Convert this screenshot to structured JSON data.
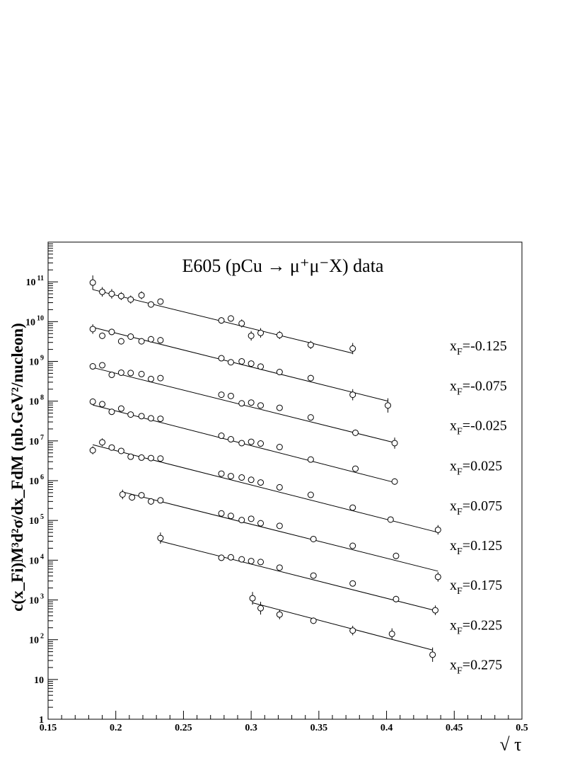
{
  "chart_data": {
    "type": "scatter",
    "title": "E605 (pCu → μ⁺μ⁻X) data",
    "xlabel": "√ τ",
    "ylabel": "c(x_Fi)M³d²σ/dx_FdM (nb.GeV²/nucleon)",
    "xlim": [
      0.15,
      0.5
    ],
    "ylim": [
      1,
      1000000000000.0
    ],
    "yscale": "log",
    "grid": false,
    "legend": "labels at right of each series",
    "x_tick_labels": [
      "0.15",
      "0.2",
      "0.25",
      "0.3",
      "0.35",
      "0.4",
      "0.45",
      "0.5"
    ],
    "y_tick_labels": [
      {
        "base": "1",
        "exp": ""
      },
      {
        "base": "10",
        "exp": ""
      },
      {
        "base": "10",
        "exp": "2"
      },
      {
        "base": "10",
        "exp": "3"
      },
      {
        "base": "10",
        "exp": "4"
      },
      {
        "base": "10",
        "exp": "5"
      },
      {
        "base": "10",
        "exp": "6"
      },
      {
        "base": "10",
        "exp": "7"
      },
      {
        "base": "10",
        "exp": "8"
      },
      {
        "base": "10",
        "exp": "9"
      },
      {
        "base": "10",
        "exp": "10"
      },
      {
        "base": "10",
        "exp": "11"
      }
    ],
    "series": [
      {
        "name": "x_F=-0.125",
        "label_main": "x",
        "label_sub": "F",
        "label_val": "=-0.125",
        "label_y": 2500000000.0,
        "fit": {
          "x": [
            0.183,
            0.375
          ],
          "y": [
            64000000000.0,
            1600000000.0
          ]
        },
        "points": [
          {
            "x": 0.183,
            "y": 96000000000.0,
            "err": 0.18
          },
          {
            "x": 0.19,
            "y": 56000000000.0,
            "err": 0.12
          },
          {
            "x": 0.197,
            "y": 50000000000.0,
            "err": 0.12
          },
          {
            "x": 0.204,
            "y": 44000000000.0,
            "err": 0.1
          },
          {
            "x": 0.211,
            "y": 36000000000.0,
            "err": 0.1
          },
          {
            "x": 0.219,
            "y": 46000000000.0,
            "err": 0.1
          },
          {
            "x": 0.226,
            "y": 27000000000.0,
            "err": 0.08
          },
          {
            "x": 0.233,
            "y": 32000000000.0,
            "err": 0.08
          },
          {
            "x": 0.278,
            "y": 10700000000.0,
            "err": 0.08
          },
          {
            "x": 0.285,
            "y": 12000000000.0,
            "err": 0.08
          },
          {
            "x": 0.293,
            "y": 9000000000.0,
            "err": 0.1
          },
          {
            "x": 0.3,
            "y": 4400000000.0,
            "err": 0.12
          },
          {
            "x": 0.307,
            "y": 5200000000.0,
            "err": 0.12
          },
          {
            "x": 0.321,
            "y": 4600000000.0,
            "err": 0.1
          },
          {
            "x": 0.344,
            "y": 2600000000.0,
            "err": 0.1
          },
          {
            "x": 0.375,
            "y": 2100000000.0,
            "err": 0.14
          }
        ]
      },
      {
        "name": "x_F=-0.075",
        "label_main": "x",
        "label_sub": "F",
        "label_val": "=-0.075",
        "label_y": 250000000.0,
        "fit": {
          "x": [
            0.183,
            0.401
          ],
          "y": [
            7200000000.0,
            100000000.0
          ]
        },
        "points": [
          {
            "x": 0.183,
            "y": 6500000000.0,
            "err": 0.12
          },
          {
            "x": 0.19,
            "y": 4400000000.0,
            "err": 0.08
          },
          {
            "x": 0.197,
            "y": 5500000000.0,
            "err": 0.08
          },
          {
            "x": 0.204,
            "y": 3200000000.0,
            "err": 0.08
          },
          {
            "x": 0.211,
            "y": 4200000000.0,
            "err": 0.08
          },
          {
            "x": 0.219,
            "y": 3200000000.0,
            "err": 0.08
          },
          {
            "x": 0.226,
            "y": 3600000000.0,
            "err": 0.08
          },
          {
            "x": 0.233,
            "y": 3400000000.0,
            "err": 0.08
          },
          {
            "x": 0.278,
            "y": 1200000000.0,
            "err": 0.06
          },
          {
            "x": 0.285,
            "y": 950000000.0,
            "err": 0.06
          },
          {
            "x": 0.293,
            "y": 1000000000.0,
            "err": 0.06
          },
          {
            "x": 0.3,
            "y": 880000000.0,
            "err": 0.06
          },
          {
            "x": 0.307,
            "y": 740000000.0,
            "err": 0.08
          },
          {
            "x": 0.321,
            "y": 540000000.0,
            "err": 0.08
          },
          {
            "x": 0.344,
            "y": 380000000.0,
            "err": 0.08
          },
          {
            "x": 0.375,
            "y": 145000000.0,
            "err": 0.14
          },
          {
            "x": 0.401,
            "y": 78000000.0,
            "err": 0.18
          }
        ]
      },
      {
        "name": "x_F=-0.025",
        "label_main": "x",
        "label_sub": "F",
        "label_val": "=-0.025",
        "label_y": 25000000.0,
        "fit": {
          "x": [
            0.183,
            0.406
          ],
          "y": [
            700000000.0,
            9000000.0
          ]
        },
        "points": [
          {
            "x": 0.183,
            "y": 750000000.0,
            "err": 0.08
          },
          {
            "x": 0.19,
            "y": 800000000.0,
            "err": 0.06
          },
          {
            "x": 0.197,
            "y": 460000000.0,
            "err": 0.06
          },
          {
            "x": 0.204,
            "y": 520000000.0,
            "err": 0.06
          },
          {
            "x": 0.211,
            "y": 510000000.0,
            "err": 0.06
          },
          {
            "x": 0.219,
            "y": 480000000.0,
            "err": 0.06
          },
          {
            "x": 0.226,
            "y": 360000000.0,
            "err": 0.06
          },
          {
            "x": 0.233,
            "y": 380000000.0,
            "err": 0.06
          },
          {
            "x": 0.278,
            "y": 145000000.0,
            "err": 0.06
          },
          {
            "x": 0.285,
            "y": 135000000.0,
            "err": 0.06
          },
          {
            "x": 0.293,
            "y": 88000000.0,
            "err": 0.06
          },
          {
            "x": 0.3,
            "y": 92000000.0,
            "err": 0.06
          },
          {
            "x": 0.307,
            "y": 78000000.0,
            "err": 0.06
          },
          {
            "x": 0.321,
            "y": 68000000.0,
            "err": 0.06
          },
          {
            "x": 0.344,
            "y": 39000000.0,
            "err": 0.06
          },
          {
            "x": 0.377,
            "y": 16000000.0,
            "err": 0.08
          },
          {
            "x": 0.406,
            "y": 8800000.0,
            "err": 0.14
          }
        ]
      },
      {
        "name": "x_F=0.025",
        "label_main": "x",
        "label_sub": "F",
        "label_val": "=0.025",
        "label_y": 2400000.0,
        "fit": {
          "x": [
            0.183,
            0.406
          ],
          "y": [
            80000000.0,
            900000.0
          ]
        },
        "points": [
          {
            "x": 0.183,
            "y": 97000000.0,
            "err": 0.06
          },
          {
            "x": 0.19,
            "y": 84000000.0,
            "err": 0.06
          },
          {
            "x": 0.197,
            "y": 54000000.0,
            "err": 0.06
          },
          {
            "x": 0.204,
            "y": 65000000.0,
            "err": 0.06
          },
          {
            "x": 0.211,
            "y": 46000000.0,
            "err": 0.06
          },
          {
            "x": 0.219,
            "y": 42000000.0,
            "err": 0.06
          },
          {
            "x": 0.226,
            "y": 37000000.0,
            "err": 0.06
          },
          {
            "x": 0.233,
            "y": 36000000.0,
            "err": 0.06
          },
          {
            "x": 0.278,
            "y": 13500000.0,
            "err": 0.06
          },
          {
            "x": 0.285,
            "y": 11000000.0,
            "err": 0.06
          },
          {
            "x": 0.293,
            "y": 8800000.0,
            "err": 0.06
          },
          {
            "x": 0.3,
            "y": 9500000.0,
            "err": 0.06
          },
          {
            "x": 0.307,
            "y": 8600000.0,
            "err": 0.06
          },
          {
            "x": 0.321,
            "y": 7000000.0,
            "err": 0.06
          },
          {
            "x": 0.344,
            "y": 3400000.0,
            "err": 0.06
          },
          {
            "x": 0.377,
            "y": 2000000.0,
            "err": 0.06
          },
          {
            "x": 0.406,
            "y": 950000.0,
            "err": 0.08
          }
        ]
      },
      {
        "name": "x_F=0.075",
        "label_main": "x",
        "label_sub": "F",
        "label_val": "=0.075",
        "label_y": 240000.0,
        "fit": {
          "x": [
            0.183,
            0.438
          ],
          "y": [
            8000000.0,
            50000.0
          ]
        },
        "points": [
          {
            "x": 0.183,
            "y": 5800000.0,
            "err": 0.1
          },
          {
            "x": 0.19,
            "y": 9200000.0,
            "err": 0.1
          },
          {
            "x": 0.197,
            "y": 6800000.0,
            "err": 0.06
          },
          {
            "x": 0.204,
            "y": 5600000.0,
            "err": 0.06
          },
          {
            "x": 0.211,
            "y": 4000000.0,
            "err": 0.06
          },
          {
            "x": 0.219,
            "y": 3800000.0,
            "err": 0.06
          },
          {
            "x": 0.226,
            "y": 3700000.0,
            "err": 0.06
          },
          {
            "x": 0.233,
            "y": 3600000.0,
            "err": 0.06
          },
          {
            "x": 0.278,
            "y": 1500000.0,
            "err": 0.06
          },
          {
            "x": 0.285,
            "y": 1300000.0,
            "err": 0.06
          },
          {
            "x": 0.293,
            "y": 1200000.0,
            "err": 0.06
          },
          {
            "x": 0.3,
            "y": 1050000.0,
            "err": 0.06
          },
          {
            "x": 0.307,
            "y": 900000.0,
            "err": 0.06
          },
          {
            "x": 0.321,
            "y": 680000.0,
            "err": 0.06
          },
          {
            "x": 0.344,
            "y": 440000.0,
            "err": 0.06
          },
          {
            "x": 0.375,
            "y": 210000.0,
            "err": 0.06
          },
          {
            "x": 0.403,
            "y": 105000.0,
            "err": 0.08
          },
          {
            "x": 0.438,
            "y": 58000.0,
            "err": 0.12
          }
        ]
      },
      {
        "name": "x_F=0.125",
        "label_main": "x",
        "label_sub": "F",
        "label_val": "=0.125",
        "label_y": 24000.0,
        "fit": {
          "x": [
            0.205,
            0.438
          ],
          "y": [
            520000.0,
            5300.0
          ]
        },
        "points": [
          {
            "x": 0.205,
            "y": 450000.0,
            "err": 0.12
          },
          {
            "x": 0.212,
            "y": 380000.0,
            "err": 0.08
          },
          {
            "x": 0.219,
            "y": 430000.0,
            "err": 0.08
          },
          {
            "x": 0.226,
            "y": 300000.0,
            "err": 0.08
          },
          {
            "x": 0.233,
            "y": 320000.0,
            "err": 0.06
          },
          {
            "x": 0.278,
            "y": 150000.0,
            "err": 0.06
          },
          {
            "x": 0.285,
            "y": 130000.0,
            "err": 0.06
          },
          {
            "x": 0.293,
            "y": 102000.0,
            "err": 0.06
          },
          {
            "x": 0.3,
            "y": 110000.0,
            "err": 0.06
          },
          {
            "x": 0.307,
            "y": 85000.0,
            "err": 0.06
          },
          {
            "x": 0.321,
            "y": 73000.0,
            "err": 0.06
          },
          {
            "x": 0.346,
            "y": 34000.0,
            "err": 0.06
          },
          {
            "x": 0.375,
            "y": 23000.0,
            "err": 0.06
          },
          {
            "x": 0.407,
            "y": 12800.0,
            "err": 0.08
          },
          {
            "x": 0.438,
            "y": 3800.0,
            "err": 0.12
          }
        ]
      },
      {
        "name": "x_F=0.175",
        "label_main": "x",
        "label_sub": "F",
        "label_val": "=0.175",
        "label_y": 2400.0,
        "fit": {
          "x": [
            0.233,
            0.436
          ],
          "y": [
            30000.0,
            540.0
          ]
        },
        "points": [
          {
            "x": 0.233,
            "y": 36000.0,
            "err": 0.14
          },
          {
            "x": 0.278,
            "y": 11500.0,
            "err": 0.08
          },
          {
            "x": 0.285,
            "y": 11800.0,
            "err": 0.06
          },
          {
            "x": 0.293,
            "y": 10500.0,
            "err": 0.06
          },
          {
            "x": 0.3,
            "y": 9500.0,
            "err": 0.06
          },
          {
            "x": 0.307,
            "y": 9000.0,
            "err": 0.06
          },
          {
            "x": 0.321,
            "y": 6500.0,
            "err": 0.06
          },
          {
            "x": 0.346,
            "y": 4100.0,
            "err": 0.06
          },
          {
            "x": 0.375,
            "y": 2600.0,
            "err": 0.06
          },
          {
            "x": 0.407,
            "y": 1050.0,
            "err": 0.08
          },
          {
            "x": 0.436,
            "y": 550.0,
            "err": 0.12
          }
        ]
      },
      {
        "name": "x_F=0.225",
        "label_main": "x",
        "label_sub": "F",
        "label_val": "=0.225",
        "label_y": 240.0,
        "fit": {
          "x": [
            0.301,
            0.434
          ],
          "y": [
            850.0,
            55.0
          ]
        },
        "points": [
          {
            "x": 0.301,
            "y": 1100.0,
            "err": 0.16
          },
          {
            "x": 0.307,
            "y": 620.0,
            "err": 0.16
          },
          {
            "x": 0.321,
            "y": 430.0,
            "err": 0.12
          },
          {
            "x": 0.346,
            "y": 300.0,
            "err": 0.08
          },
          {
            "x": 0.375,
            "y": 170.0,
            "err": 0.12
          },
          {
            "x": 0.404,
            "y": 140.0,
            "err": 0.14
          },
          {
            "x": 0.434,
            "y": 42.0,
            "err": 0.18
          }
        ]
      },
      {
        "name": "x_F=0.275",
        "label_main": "x",
        "label_sub": "F",
        "label_val": "=0.275",
        "label_y": 24.0,
        "fit": null,
        "points": []
      }
    ]
  }
}
